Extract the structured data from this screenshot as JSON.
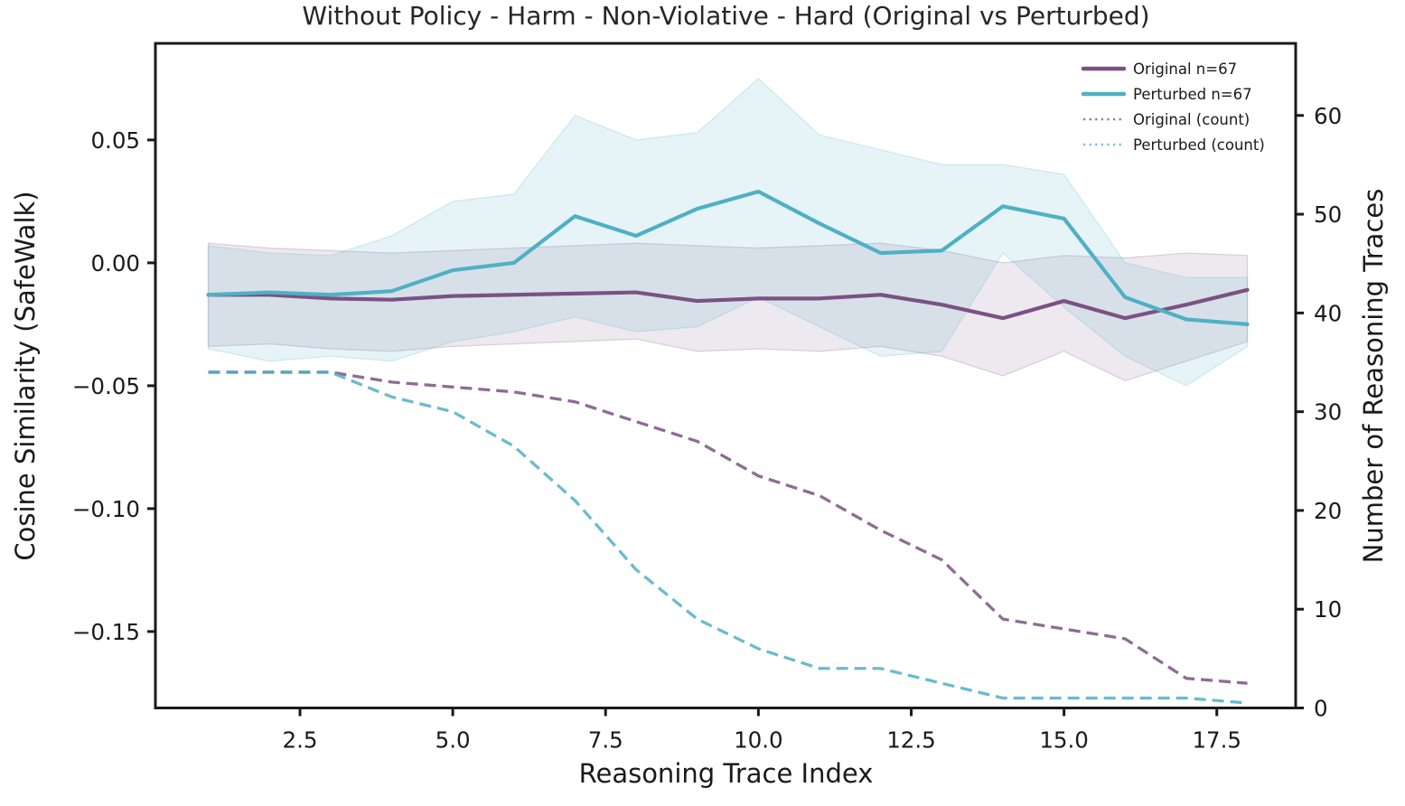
{
  "chart_data": {
    "type": "line",
    "title": "Without Policy - Harm - Non-Violative - Hard (Original vs Perturbed)",
    "xlabel": "Reasoning Trace Index",
    "ylabel_left": "Cosine Similarity (SafeWalk)",
    "ylabel_right": "Number of Reasoning Traces",
    "xlim": [
      0.135,
      18.79
    ],
    "left_ylim": [
      -0.1811,
      0.0893
    ],
    "right_ylim": [
      0,
      67.3
    ],
    "grid": false,
    "legend_position": "upper right",
    "x_ticks": [
      2.5,
      5.0,
      7.5,
      10.0,
      12.5,
      15.0,
      17.5
    ],
    "x_tick_labels": [
      "2.5",
      "5.0",
      "7.5",
      "10.0",
      "12.5",
      "15.0",
      "17.5"
    ],
    "left_ticks": [
      0.05,
      0.0,
      -0.05,
      -0.1,
      -0.15
    ],
    "left_tick_labels": [
      "0.05",
      "0.00",
      "−0.05",
      "−0.10",
      "−0.15"
    ],
    "right_ticks": [
      0,
      10,
      20,
      30,
      40,
      50,
      60
    ],
    "right_tick_labels": [
      "0",
      "10",
      "20",
      "30",
      "40",
      "50",
      "60"
    ],
    "x": [
      1,
      2,
      3,
      4,
      5,
      6,
      7,
      8,
      9,
      10,
      11,
      12,
      13,
      14,
      15,
      16,
      17,
      18
    ],
    "series": [
      {
        "name": "Original n=67",
        "axis": "left",
        "style": "solid",
        "color": "#7b5183",
        "band_fill": "rgba(123,81,131,0.13)",
        "values": [
          -0.013,
          -0.013,
          -0.0145,
          -0.015,
          -0.0135,
          -0.013,
          -0.0125,
          -0.012,
          -0.0155,
          -0.0145,
          -0.0145,
          -0.013,
          -0.017,
          -0.0225,
          -0.0155,
          -0.0225,
          -0.017,
          -0.011
        ],
        "band_upper": [
          0.008,
          0.006,
          0.005,
          0.004,
          0.005,
          0.006,
          0.007,
          0.008,
          0.007,
          0.006,
          0.007,
          0.008,
          0.005,
          0.0,
          0.003,
          0.002,
          0.004,
          0.003
        ],
        "band_lower": [
          -0.034,
          -0.033,
          -0.035,
          -0.036,
          -0.034,
          -0.033,
          -0.032,
          -0.031,
          -0.036,
          -0.035,
          -0.036,
          -0.034,
          -0.038,
          -0.046,
          -0.036,
          -0.048,
          -0.04,
          -0.032
        ]
      },
      {
        "name": "Perturbed n=67",
        "axis": "left",
        "style": "solid",
        "color": "#4fb0c4",
        "band_fill": "rgba(79,176,196,0.14)",
        "values": [
          -0.013,
          -0.012,
          -0.013,
          -0.0115,
          -0.003,
          0.0,
          0.019,
          0.011,
          0.022,
          0.029,
          0.016,
          0.004,
          0.005,
          0.023,
          0.018,
          -0.014,
          -0.023,
          -0.025
        ],
        "band_upper": [
          0.007,
          0.004,
          0.003,
          0.011,
          0.025,
          0.028,
          0.06,
          0.05,
          0.053,
          0.075,
          0.052,
          0.046,
          0.04,
          0.04,
          0.036,
          0.0,
          -0.006,
          -0.006
        ],
        "band_lower": [
          -0.035,
          -0.04,
          -0.038,
          -0.04,
          -0.032,
          -0.028,
          -0.022,
          -0.028,
          -0.026,
          -0.014,
          -0.026,
          -0.038,
          -0.036,
          0.004,
          -0.018,
          -0.038,
          -0.05,
          -0.034
        ]
      },
      {
        "name": "Original (count)",
        "axis": "right",
        "style": "dashed",
        "color": "#7b5183",
        "values": [
          34,
          34,
          34,
          33,
          32.5,
          32,
          31,
          29,
          27,
          23.5,
          21.5,
          18,
          15,
          9,
          8,
          7,
          3,
          2.5
        ]
      },
      {
        "name": "Perturbed (count)",
        "axis": "right",
        "style": "dashed",
        "color": "#4fb0c4",
        "values": [
          34,
          34,
          34,
          31.5,
          30,
          26.5,
          21,
          14,
          9,
          6,
          4,
          4,
          2.5,
          1,
          1,
          1,
          1,
          0.5
        ]
      }
    ],
    "legend": [
      "Original n=67",
      "Perturbed n=67",
      "Original (count)",
      "Perturbed (count)"
    ]
  },
  "colors": {
    "original": "#7b5183",
    "perturbed": "#4fb0c4",
    "axis": "#1a1a1a",
    "background": "#ffffff"
  }
}
